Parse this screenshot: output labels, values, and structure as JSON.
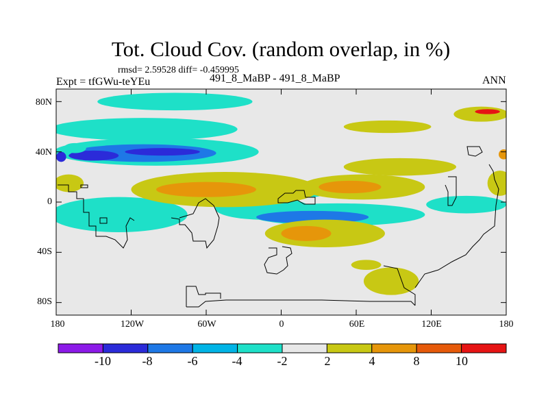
{
  "plot": {
    "title": "Tot. Cloud Cov. (random overlap, in %)",
    "stats": "rmsd= 2.59528 diff= -0.459995",
    "experiment": "Expt = tfGWu-teYEu",
    "case": "491_8_MaBP - 491_8_MaBP",
    "season": "ANN"
  },
  "axes": {
    "y_ticks": [
      "80N",
      "40N",
      "0",
      "40S",
      "80S"
    ],
    "x_ticks": [
      "180",
      "120W",
      "60W",
      "0",
      "60E",
      "120E",
      "180"
    ],
    "lon_range": [
      -180,
      180
    ],
    "lat_range": [
      -90,
      90
    ]
  },
  "colorbar": {
    "labels": [
      "-10",
      "-8",
      "-6",
      "-4",
      "-2",
      "2",
      "4",
      "8",
      "10"
    ],
    "colors": [
      "#8c1ae8",
      "#2b2bd9",
      "#1e78e6",
      "#00b4e6",
      "#1ee0c8",
      "#e8e8e8",
      "#c8c814",
      "#e6960a",
      "#e65a0a",
      "#e61414"
    ]
  },
  "chart_data": {
    "type": "heatmap",
    "variable": "Total cloud cover difference (%)",
    "levels": [
      -10,
      -8,
      -6,
      -4,
      -2,
      2,
      4,
      8,
      10
    ],
    "x_range": [
      -180,
      180
    ],
    "y_range": [
      -90,
      90
    ],
    "regions": [
      {
        "lon": -85,
        "lat": 80,
        "rlon": 62,
        "rlat": 7,
        "level": "-4"
      },
      {
        "lon": -110,
        "lat": 58,
        "rlon": 75,
        "rlat": 9,
        "level": "-4"
      },
      {
        "lon": -100,
        "lat": 40,
        "rlon": 82,
        "rlat": 11,
        "level": "-4"
      },
      {
        "lon": -110,
        "lat": 39,
        "rlon": 58,
        "rlat": 7,
        "level": "-6"
      },
      {
        "lon": -95,
        "lat": 40,
        "rlon": 30,
        "rlat": 3,
        "level": "-8"
      },
      {
        "lon": -150,
        "lat": 37,
        "rlon": 20,
        "rlat": 4,
        "level": "-8"
      },
      {
        "lon": -130,
        "lat": -10,
        "rlon": 55,
        "rlat": 14,
        "level": "-4"
      },
      {
        "lon": -15,
        "lat": -5,
        "rlon": 38,
        "rlat": 9,
        "level": "-4"
      },
      {
        "lon": 45,
        "lat": -10,
        "rlon": 70,
        "rlat": 9,
        "level": "-4"
      },
      {
        "lon": 25,
        "lat": -12,
        "rlon": 45,
        "rlat": 5,
        "level": "-6"
      },
      {
        "lon": 148,
        "lat": -2,
        "rlon": 32,
        "rlat": 7,
        "level": "-4"
      },
      {
        "lon": 25,
        "lat": 10,
        "rlon": 12,
        "rlat": 6,
        "level": "-4"
      },
      {
        "lon": -45,
        "lat": 10,
        "rlon": 75,
        "rlat": 14,
        "level": "2"
      },
      {
        "lon": -60,
        "lat": 10,
        "rlon": 40,
        "rlat": 6,
        "level": "4"
      },
      {
        "lon": 65,
        "lat": 12,
        "rlon": 50,
        "rlat": 10,
        "level": "2"
      },
      {
        "lon": 55,
        "lat": 12,
        "rlon": 25,
        "rlat": 5,
        "level": "4"
      },
      {
        "lon": 35,
        "lat": -25,
        "rlon": 48,
        "rlat": 11,
        "level": "2"
      },
      {
        "lon": 20,
        "lat": -25,
        "rlon": 20,
        "rlat": 6,
        "level": "4"
      },
      {
        "lon": 95,
        "lat": 28,
        "rlon": 45,
        "rlat": 7,
        "level": "2"
      },
      {
        "lon": 85,
        "lat": 60,
        "rlon": 35,
        "rlat": 5,
        "level": "2"
      },
      {
        "lon": 160,
        "lat": 70,
        "rlon": 22,
        "rlat": 6,
        "level": "2"
      },
      {
        "lon": 165,
        "lat": 72,
        "rlon": 10,
        "rlat": 2,
        "level": "10"
      },
      {
        "lon": 88,
        "lat": -63,
        "rlon": 22,
        "rlat": 11,
        "level": "2"
      },
      {
        "lon": 68,
        "lat": -50,
        "rlon": 12,
        "rlat": 4,
        "level": "2"
      },
      {
        "lon": -170,
        "lat": 15,
        "rlon": 12,
        "rlat": 7,
        "level": "2"
      },
      {
        "lon": 175,
        "lat": 15,
        "rlon": 10,
        "rlat": 10,
        "level": "2"
      },
      {
        "lon": -165,
        "lat": 43,
        "rlon": 9,
        "rlat": 4,
        "level": "-4"
      },
      {
        "lon": -176,
        "lat": 36,
        "rlon": 4,
        "rlat": 4,
        "level": "-10"
      },
      {
        "lon": 178,
        "lat": 38,
        "rlon": 4,
        "rlat": 4,
        "level": "8"
      }
    ]
  }
}
